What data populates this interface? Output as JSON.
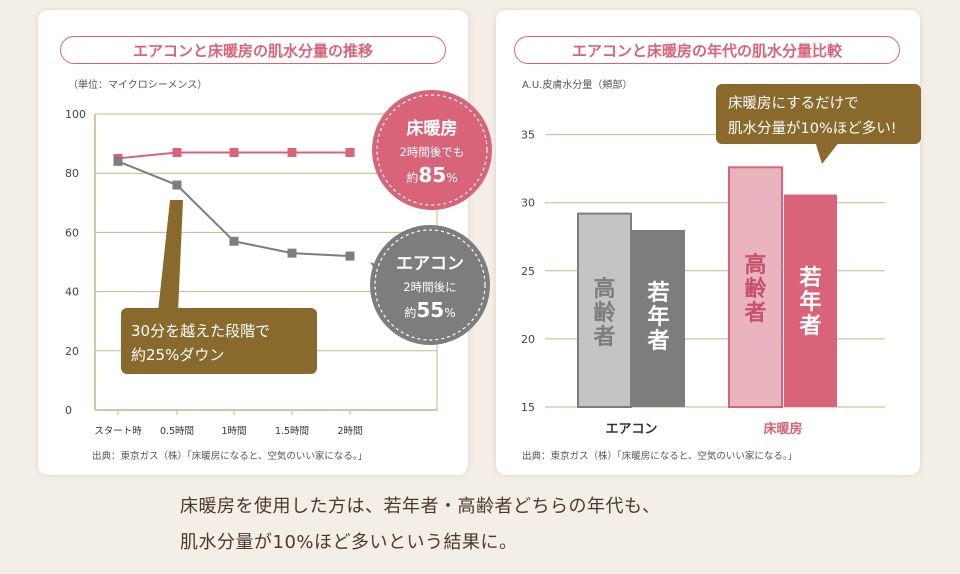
{
  "caption": {
    "line1": "床暖房を使用した方は、若年者・高齢者どちらの年代も、",
    "line2": "肌水分量が10%ほど多いという結果に。"
  },
  "colors": {
    "pink": "#d9647a",
    "light_pink": "#eab4be",
    "gray": "#7d7d7d",
    "light_gray": "#c4c4c6",
    "olive": "#8a6a2c",
    "grid": "#c9b48a"
  },
  "chart_data": [
    {
      "type": "line",
      "title": "エアコンと床暖房の肌水分量の推移",
      "ylabel": "（単位：マイクロシーメンス）",
      "x": [
        "スタート時",
        "0.5時間",
        "1時間",
        "1.5時間",
        "2時間"
      ],
      "ylim": [
        0,
        100
      ],
      "yticks": [
        "0",
        "20",
        "40",
        "60",
        "80",
        "100"
      ],
      "grid": true,
      "series": [
        {
          "name": "床暖房",
          "values": [
            85,
            87,
            87,
            87,
            87
          ]
        },
        {
          "name": "エアコン",
          "values": [
            84,
            76,
            57,
            53,
            52
          ]
        }
      ],
      "annotations": [
        {
          "title": "床暖房",
          "line1": "2時間後でも",
          "prefix": "約",
          "value": "85",
          "suffix": "%"
        },
        {
          "title": "エアコン",
          "line1": "2時間後に",
          "prefix": "約",
          "value": "55",
          "suffix": "%"
        },
        {
          "line1": "30分を越えた段階で",
          "line2": "約25%ダウン"
        }
      ],
      "source": "出典：東京ガス（株）「床暖房になると、空気のいい家になる。」"
    },
    {
      "type": "bar",
      "title": "エアコンと床暖房の年代の肌水分量比較",
      "ylabel": "A.U.皮膚水分量（頬部）",
      "categories": [
        "エアコン",
        "床暖房"
      ],
      "ylim": [
        15,
        36
      ],
      "yticks": [
        "15",
        "20",
        "25",
        "30",
        "35"
      ],
      "grid": true,
      "series": [
        {
          "name": "高齢者",
          "values": [
            29.2,
            32.6
          ]
        },
        {
          "name": "若年者",
          "values": [
            28.0,
            30.6
          ]
        }
      ],
      "callout": {
        "line1": "床暖房にするだけで",
        "line2": "肌水分量が10%ほど多い!"
      },
      "source": "出典：東京ガス（株）「床暖房になると、空気のいい家になる。」"
    }
  ]
}
